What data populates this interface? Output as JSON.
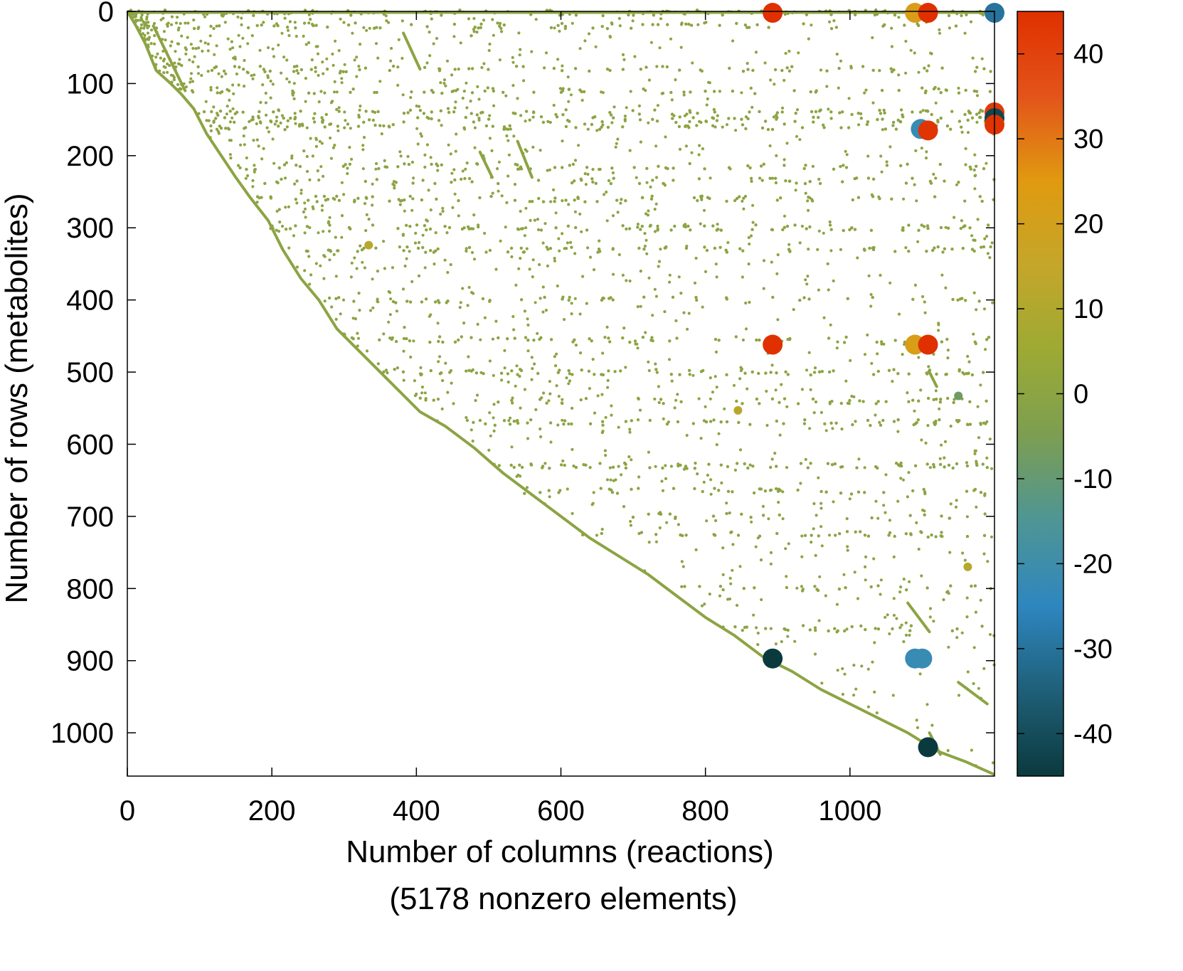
{
  "chart_data": {
    "type": "scatter",
    "title": "",
    "xlabel": "Number of columns (reactions)",
    "xlabel_sub": "(5178 nonzero elements)",
    "ylabel": "Number of rows (metabolites)",
    "xlim": [
      0,
      1200
    ],
    "ylim": [
      0,
      1060
    ],
    "y_inverted": true,
    "x_ticks": [
      0,
      200,
      400,
      600,
      800,
      1000
    ],
    "y_ticks": [
      0,
      100,
      200,
      300,
      400,
      500,
      600,
      700,
      800,
      900,
      1000
    ],
    "grid": false,
    "colorbar": {
      "range": [
        -45,
        45
      ],
      "ticks": [
        40,
        30,
        20,
        10,
        0,
        -10,
        -20,
        -30,
        -40
      ],
      "colormap": [
        "#0b3a3e",
        "#1f5f78",
        "#2e86bf",
        "#4e9595",
        "#7c9e52",
        "#9caa34",
        "#c4a62a",
        "#e09a10",
        "#e3541a",
        "#e03000"
      ]
    },
    "diagonal_path": [
      [
        0,
        0
      ],
      [
        12,
        20
      ],
      [
        25,
        45
      ],
      [
        40,
        82
      ],
      [
        60,
        100
      ],
      [
        75,
        115
      ],
      [
        92,
        135
      ],
      [
        110,
        170
      ],
      [
        130,
        200
      ],
      [
        150,
        230
      ],
      [
        170,
        258
      ],
      [
        195,
        290
      ],
      [
        215,
        330
      ],
      [
        240,
        370
      ],
      [
        265,
        400
      ],
      [
        290,
        440
      ],
      [
        320,
        470
      ],
      [
        350,
        500
      ],
      [
        380,
        530
      ],
      [
        405,
        555
      ],
      [
        440,
        575
      ],
      [
        480,
        605
      ],
      [
        520,
        640
      ],
      [
        560,
        670
      ],
      [
        600,
        700
      ],
      [
        640,
        730
      ],
      [
        680,
        755
      ],
      [
        720,
        780
      ],
      [
        760,
        810
      ],
      [
        800,
        840
      ],
      [
        840,
        865
      ],
      [
        880,
        895
      ],
      [
        920,
        915
      ],
      [
        960,
        940
      ],
      [
        1000,
        960
      ],
      [
        1040,
        980
      ],
      [
        1080,
        1000
      ],
      [
        1120,
        1025
      ],
      [
        1160,
        1040
      ],
      [
        1200,
        1058
      ]
    ],
    "large_points": [
      {
        "x": 893,
        "y": 2,
        "v": 45
      },
      {
        "x": 1090,
        "y": 2,
        "v": 22
      },
      {
        "x": 1108,
        "y": 2,
        "v": 45
      },
      {
        "x": 1200,
        "y": 2,
        "v": -30
      },
      {
        "x": 1200,
        "y": 140,
        "v": 42
      },
      {
        "x": 1200,
        "y": 148,
        "v": -42
      },
      {
        "x": 1200,
        "y": 157,
        "v": 44
      },
      {
        "x": 1098,
        "y": 163,
        "v": -22
      },
      {
        "x": 1108,
        "y": 165,
        "v": 44
      },
      {
        "x": 893,
        "y": 462,
        "v": 45
      },
      {
        "x": 1090,
        "y": 462,
        "v": 22
      },
      {
        "x": 1108,
        "y": 462,
        "v": 45
      },
      {
        "x": 1090,
        "y": 897,
        "v": -22
      },
      {
        "x": 1100,
        "y": 897,
        "v": -22
      },
      {
        "x": 893,
        "y": 897,
        "v": -45
      },
      {
        "x": 1108,
        "y": 1020,
        "v": -45
      },
      {
        "x": 1150,
        "y": 533,
        "v": -8
      },
      {
        "x": 1163,
        "y": 770,
        "v": 12
      },
      {
        "x": 845,
        "y": 553,
        "v": 12
      },
      {
        "x": 334,
        "y": 324,
        "v": 12
      }
    ],
    "sparse_points": {
      "count": 5178,
      "value": 0,
      "dense_rows": [
        2,
        20,
        80,
        110,
        140,
        150,
        160,
        215,
        235,
        260,
        300,
        330,
        400,
        455,
        500,
        540,
        570,
        630,
        665,
        700,
        725,
        800,
        855
      ]
    }
  }
}
